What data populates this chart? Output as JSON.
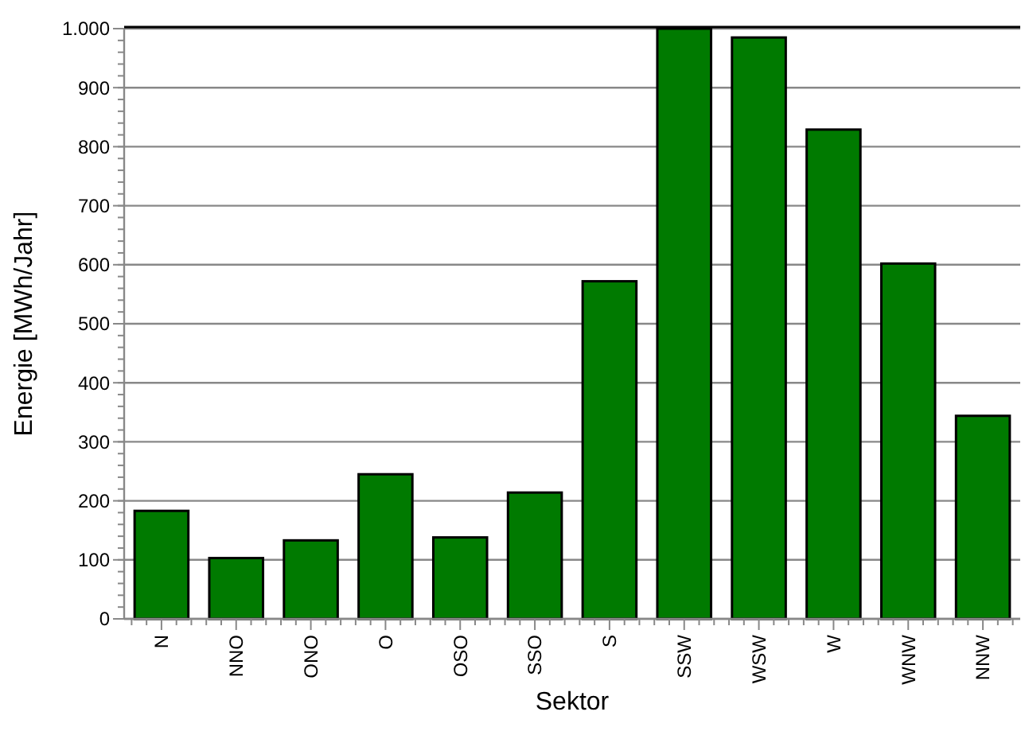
{
  "chart_data": {
    "type": "bar",
    "xlabel": "Sektor",
    "ylabel": "Energie [MWh/Jahr]",
    "categories": [
      "N",
      "NNO",
      "ONO",
      "O",
      "OSO",
      "SSO",
      "S",
      "SSW",
      "WSW",
      "W",
      "WNW",
      "NNW"
    ],
    "values": [
      183,
      103,
      133,
      245,
      138,
      214,
      572,
      1000,
      985,
      829,
      602,
      344
    ],
    "color": "#007a00",
    "ylim": [
      0,
      1000
    ],
    "yticks": [
      0,
      100,
      200,
      300,
      400,
      500,
      600,
      700,
      800,
      900,
      {
        "value": 1000,
        "label": "1.000"
      }
    ],
    "grid": "y"
  }
}
